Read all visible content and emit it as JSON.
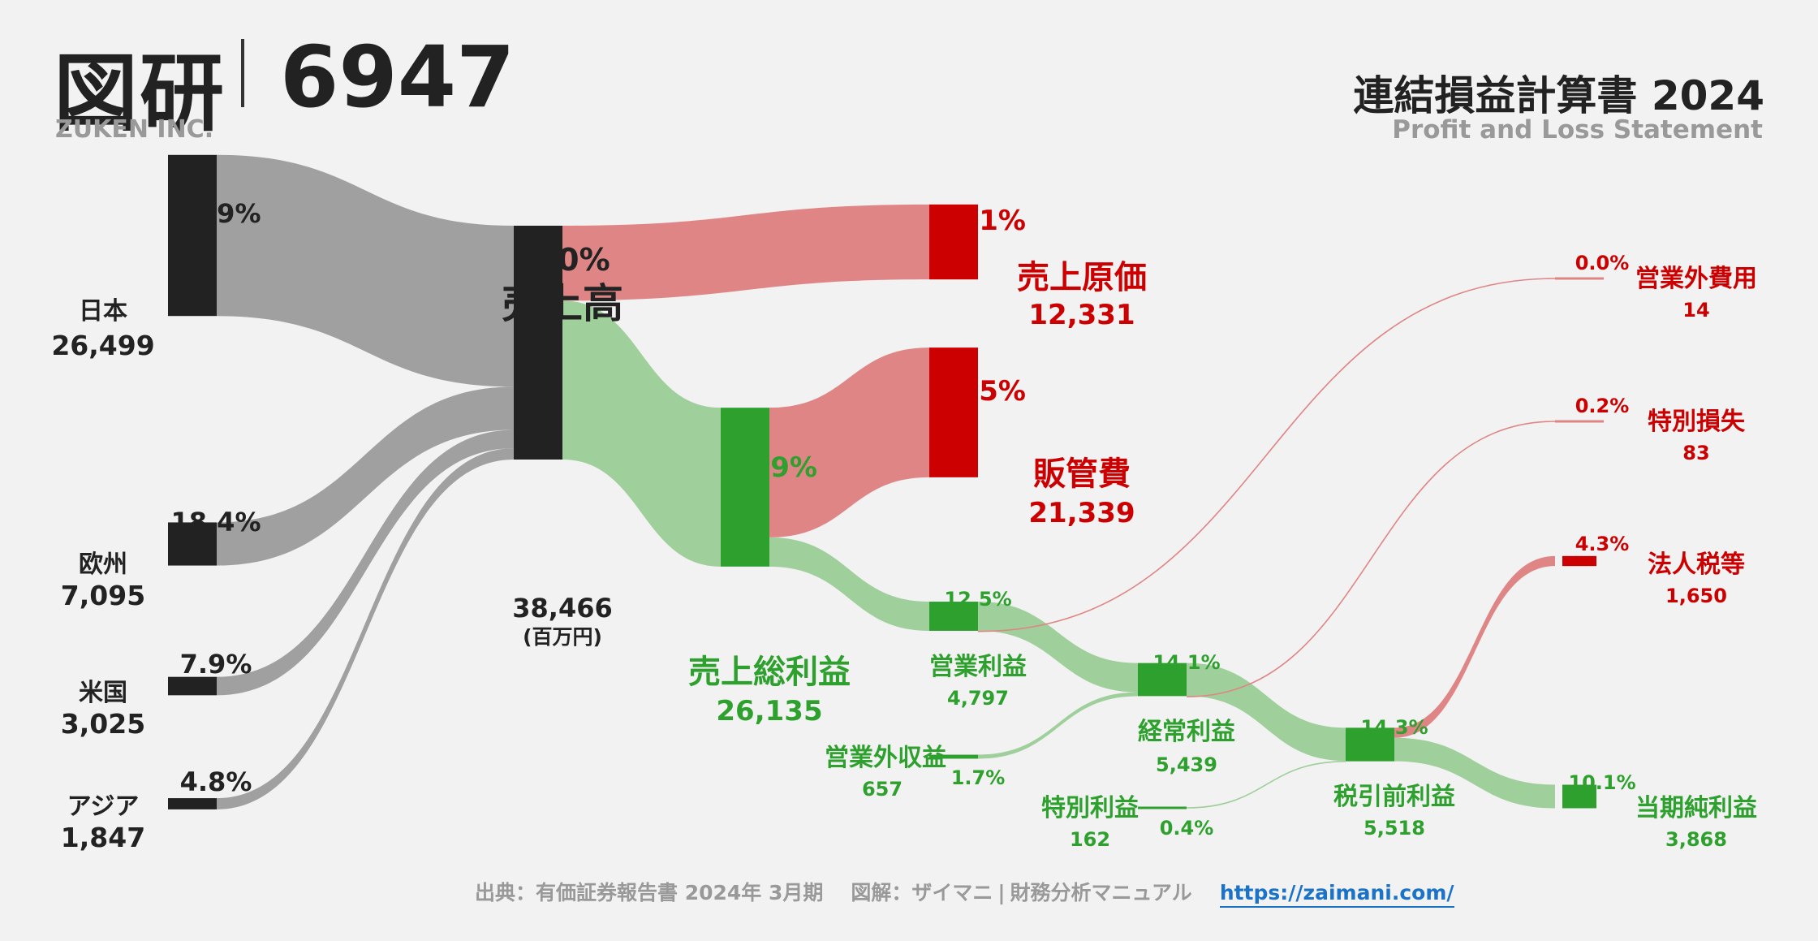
{
  "header": {
    "company_ja": "図研",
    "ticker": "6947",
    "company_en": "ZUKEN INC.",
    "statement_ja": "連結損益計算書 2024",
    "statement_en": "Profit and Loss Statement"
  },
  "labels": {
    "japan_name": "日本",
    "japan_value": "26,499",
    "japan_pct": "68.9%",
    "europe_name": "欧州",
    "europe_value": "7,095",
    "europe_pct": "18.4%",
    "us_name": "米国",
    "us_value": "3,025",
    "us_pct": "7.9%",
    "asia_name": "アジア",
    "asia_value": "1,847",
    "asia_pct": "4.8%",
    "revenue_pct": "100%",
    "revenue_name": "売上高",
    "revenue_value": "38,466",
    "revenue_unit": "(百万円)",
    "cogs_pct": "32.1%",
    "cogs_name": "売上原価",
    "cogs_value": "12,331",
    "sga_pct": "55.5%",
    "sga_name": "販管費",
    "sga_value": "21,339",
    "gross_pct": "67.9%",
    "gross_name": "売上総利益",
    "gross_value": "26,135",
    "op_pct": "12.5%",
    "op_name": "営業利益",
    "op_value": "4,797",
    "nonop_inc_name": "営業外収益",
    "nonop_inc_value": "657",
    "nonop_inc_pct": "1.7%",
    "ordinary_pct": "14.1%",
    "ordinary_name": "経常利益",
    "ordinary_value": "5,439",
    "special_gain_name": "特別利益",
    "special_gain_value": "162",
    "special_gain_pct": "0.4%",
    "pretax_pct": "14.3%",
    "pretax_name": "税引前利益",
    "pretax_value": "5,518",
    "nonop_exp_pct": "0.0%",
    "nonop_exp_name": "営業外費用",
    "nonop_exp_value": "14",
    "special_loss_pct": "0.2%",
    "special_loss_name": "特別損失",
    "special_loss_value": "83",
    "tax_pct": "4.3%",
    "tax_name": "法人税等",
    "tax_value": "1,650",
    "net_pct": "10.1%",
    "net_name": "当期純利益",
    "net_value": "3,868"
  },
  "footer": {
    "source": "出典：有価証券報告書 2024年 3月期",
    "diagram": "図解：ザイマニ",
    "separator": "|",
    "site_name": "財務分析マニュアル",
    "url": "https://zaimani.com/"
  },
  "colors": {
    "revenue_node": "#222222",
    "segment_flow": "#a0a0a0",
    "cost_node": "#cc0000",
    "cost_flow": "#e08585",
    "profit_node": "#2ea02e",
    "profit_flow": "#9fcf9a",
    "background": "#f2f2f2"
  },
  "chart_data": {
    "type": "sankey",
    "unit": "百万円",
    "nodes": [
      {
        "id": "japan",
        "name": "日本",
        "value": 26499,
        "pct": 68.9
      },
      {
        "id": "europe",
        "name": "欧州",
        "value": 7095,
        "pct": 18.4
      },
      {
        "id": "us",
        "name": "米国",
        "value": 3025,
        "pct": 7.9
      },
      {
        "id": "asia",
        "name": "アジア",
        "value": 1847,
        "pct": 4.8
      },
      {
        "id": "revenue",
        "name": "売上高",
        "value": 38466,
        "pct": 100
      },
      {
        "id": "cogs",
        "name": "売上原価",
        "value": 12331,
        "pct": 32.1
      },
      {
        "id": "gross",
        "name": "売上総利益",
        "value": 26135,
        "pct": 67.9
      },
      {
        "id": "sga",
        "name": "販管費",
        "value": 21339,
        "pct": 55.5
      },
      {
        "id": "op",
        "name": "営業利益",
        "value": 4797,
        "pct": 12.5
      },
      {
        "id": "nonop_inc",
        "name": "営業外収益",
        "value": 657,
        "pct": 1.7
      },
      {
        "id": "nonop_exp",
        "name": "営業外費用",
        "value": 14,
        "pct": 0.0
      },
      {
        "id": "ordinary",
        "name": "経常利益",
        "value": 5439,
        "pct": 14.1
      },
      {
        "id": "special_gain",
        "name": "特別利益",
        "value": 162,
        "pct": 0.4
      },
      {
        "id": "special_loss",
        "name": "特別損失",
        "value": 83,
        "pct": 0.2
      },
      {
        "id": "pretax",
        "name": "税引前利益",
        "value": 5518,
        "pct": 14.3
      },
      {
        "id": "tax",
        "name": "法人税等",
        "value": 1650,
        "pct": 4.3
      },
      {
        "id": "net",
        "name": "当期純利益",
        "value": 3868,
        "pct": 10.1
      }
    ],
    "links": [
      {
        "source": "japan",
        "target": "revenue",
        "value": 26499
      },
      {
        "source": "europe",
        "target": "revenue",
        "value": 7095
      },
      {
        "source": "us",
        "target": "revenue",
        "value": 3025
      },
      {
        "source": "asia",
        "target": "revenue",
        "value": 1847
      },
      {
        "source": "revenue",
        "target": "cogs",
        "value": 12331
      },
      {
        "source": "revenue",
        "target": "gross",
        "value": 26135
      },
      {
        "source": "gross",
        "target": "sga",
        "value": 21339
      },
      {
        "source": "gross",
        "target": "op",
        "value": 4797
      },
      {
        "source": "op",
        "target": "ordinary",
        "value": 4797
      },
      {
        "source": "op",
        "target": "nonop_exp",
        "value": 14
      },
      {
        "source": "nonop_inc",
        "target": "ordinary",
        "value": 657
      },
      {
        "source": "ordinary",
        "target": "pretax",
        "value": 5439
      },
      {
        "source": "ordinary",
        "target": "special_loss",
        "value": 83
      },
      {
        "source": "special_gain",
        "target": "pretax",
        "value": 162
      },
      {
        "source": "pretax",
        "target": "tax",
        "value": 1650
      },
      {
        "source": "pretax",
        "target": "net",
        "value": 3868
      }
    ]
  }
}
